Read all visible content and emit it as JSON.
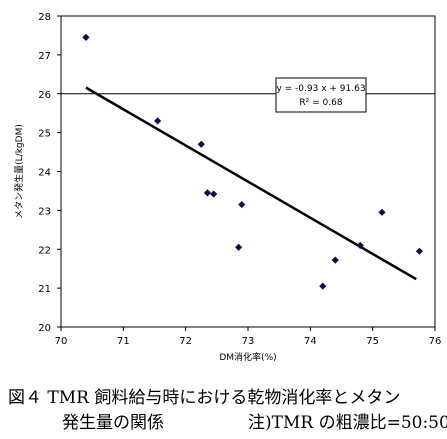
{
  "chart_data": {
    "type": "scatter",
    "xlabel": "DM消化率(%)",
    "ylabel": "メタン発生量(L/kgDM)",
    "xlim": [
      70,
      76
    ],
    "ylim": [
      20,
      28
    ],
    "x_ticks": [
      "70",
      "71",
      "72",
      "73",
      "74",
      "75",
      "76"
    ],
    "y_ticks": [
      "20",
      "21",
      "22",
      "23",
      "24",
      "25",
      "26",
      "27",
      "28"
    ],
    "points": [
      {
        "x": 70.4,
        "y": 27.45
      },
      {
        "x": 71.55,
        "y": 25.3
      },
      {
        "x": 72.25,
        "y": 24.7
      },
      {
        "x": 72.35,
        "y": 23.45
      },
      {
        "x": 72.45,
        "y": 23.42
      },
      {
        "x": 72.9,
        "y": 23.15
      },
      {
        "x": 72.85,
        "y": 22.05
      },
      {
        "x": 74.2,
        "y": 21.05
      },
      {
        "x": 74.4,
        "y": 21.72
      },
      {
        "x": 74.8,
        "y": 22.1
      },
      {
        "x": 75.15,
        "y": 22.95
      },
      {
        "x": 75.75,
        "y": 21.95
      }
    ],
    "trendline": {
      "slope": -0.93,
      "intercept": 91.63,
      "x_range": [
        70.4,
        75.7
      ]
    },
    "equation": "y = -0.93 x + 91.63",
    "r2_label": "R² = 0.68",
    "reference_line_y": 26,
    "marker_color": "#0d0d4a",
    "line_color": "#000000"
  },
  "caption": {
    "line1": "図４  TMR 飼料給与時における乾物消化率とメタン",
    "line2": "発生量の関係",
    "note": "注)TMR の粗濃比=50:50"
  }
}
